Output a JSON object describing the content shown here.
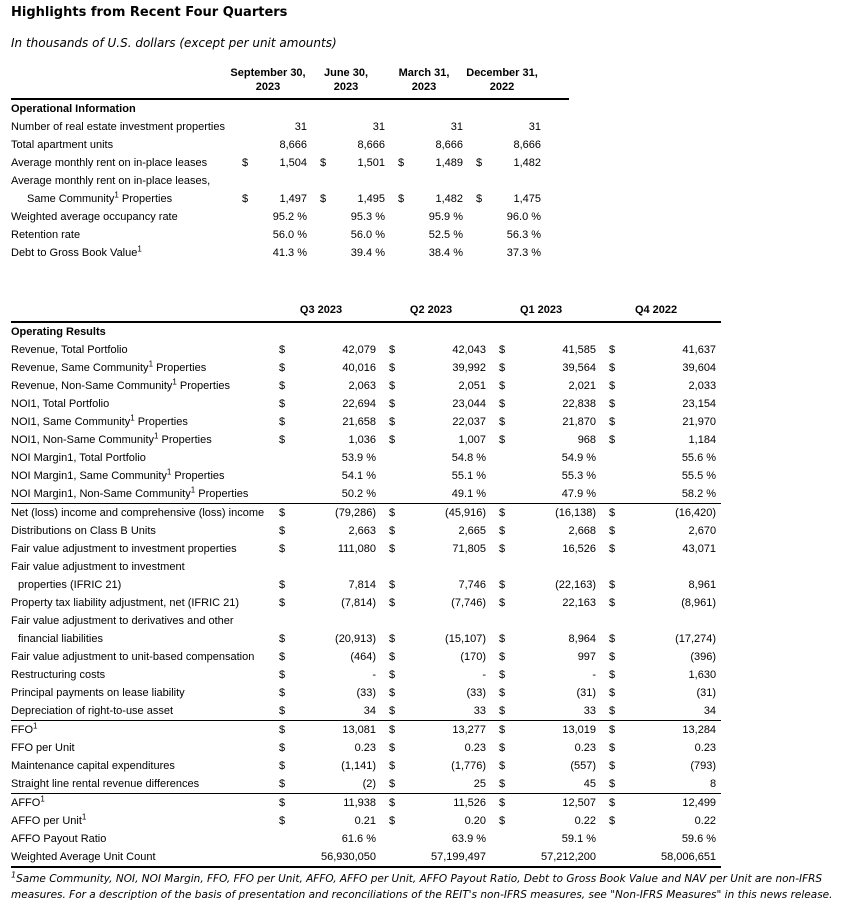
{
  "title": "Highlights from Recent Four Quarters",
  "subtitle": "In thousands of U.S. dollars (except per unit amounts)",
  "currency_symbol": "$",
  "table1": {
    "section_label": "Operational Information",
    "col_headers": [
      {
        "l1": "September 30,",
        "l2": "2023"
      },
      {
        "l1": "June 30,",
        "l2": "2023"
      },
      {
        "l1": "March 31,",
        "l2": "2023"
      },
      {
        "l1": "December 31,",
        "l2": "2022"
      }
    ],
    "rows": [
      {
        "label": "Number of real estate investment properties",
        "dollar": false,
        "values": [
          "31",
          "31",
          "31",
          "31"
        ]
      },
      {
        "label": "Total apartment units",
        "dollar": false,
        "values": [
          "8,666",
          "8,666",
          "8,666",
          "8,666"
        ]
      },
      {
        "label": "Average monthly rent on in-place leases",
        "dollar": true,
        "values": [
          "1,504",
          "1,501",
          "1,489",
          "1,482"
        ]
      },
      {
        "label": "Average monthly rent on in-place leases,",
        "dollar": false,
        "values": []
      },
      {
        "label": "Same Community",
        "sup": "1",
        "post": " Properties",
        "indent": 1,
        "dollar": true,
        "values": [
          "1,497",
          "1,495",
          "1,482",
          "1,475"
        ]
      },
      {
        "label": "Weighted average occupancy rate",
        "dollar": false,
        "values": [
          "95.2 %",
          "95.3 %",
          "95.9 %",
          "96.0 %"
        ]
      },
      {
        "label": "Retention rate",
        "dollar": false,
        "values": [
          "56.0 %",
          "56.0 %",
          "52.5 %",
          "56.3 %"
        ]
      },
      {
        "label": "Debt to Gross Book Value",
        "sup": "1",
        "dollar": false,
        "values": [
          "41.3 %",
          "39.4 %",
          "38.4 %",
          "37.3 %"
        ]
      }
    ]
  },
  "table2": {
    "section_label": "Operating Results",
    "col_headers": [
      "Q3 2023",
      "Q2 2023",
      "Q1 2023",
      "Q4 2022"
    ],
    "rows": [
      {
        "label": "Revenue, Total Portfolio",
        "dollar": true,
        "values": [
          "42,079",
          "42,043",
          "41,585",
          "41,637"
        ]
      },
      {
        "label": "Revenue, Same Community",
        "sup": "1",
        "post": " Properties",
        "dollar": true,
        "values": [
          "40,016",
          "39,992",
          "39,564",
          "39,604"
        ]
      },
      {
        "label": "Revenue, Non-Same Community",
        "sup": "1",
        "post": " Properties",
        "dollar": true,
        "values": [
          "2,063",
          "2,051",
          "2,021",
          "2,033"
        ]
      },
      {
        "label": "NOI1, Total Portfolio",
        "dollar": true,
        "values": [
          "22,694",
          "23,044",
          "22,838",
          "23,154"
        ]
      },
      {
        "label": "NOI1, Same Community",
        "sup": "1",
        "post": " Properties",
        "dollar": true,
        "values": [
          "21,658",
          "22,037",
          "21,870",
          "21,970"
        ]
      },
      {
        "label": "NOI1, Non-Same Community",
        "sup": "1",
        "post": " Properties",
        "dollar": true,
        "values": [
          "1,036",
          "1,007",
          "968",
          "1,184"
        ]
      },
      {
        "label": "NOI Margin1, Total Portfolio",
        "dollar": false,
        "values": [
          "53.9 %",
          "54.8 %",
          "54.9 %",
          "55.6 %"
        ]
      },
      {
        "label": "NOI Margin1, Same Community",
        "sup": "1",
        "post": " Properties",
        "dollar": false,
        "values": [
          "54.1 %",
          "55.1 %",
          "55.3 %",
          "55.5 %"
        ]
      },
      {
        "label": "NOI Margin1, Non-Same Community",
        "sup": "1",
        "post": " Properties",
        "dollar": false,
        "values": [
          "50.2 %",
          "49.1 %",
          "47.9 %",
          "58.2 %"
        ]
      },
      {
        "label": "Net (loss) income and comprehensive (loss) income",
        "dollar": true,
        "rule": "top",
        "values": [
          "(79,286)",
          "(45,916)",
          "(16,138)",
          "(16,420)"
        ]
      },
      {
        "label": "Distributions on Class B Units",
        "dollar": true,
        "values": [
          "2,663",
          "2,665",
          "2,668",
          "2,670"
        ]
      },
      {
        "label": "Fair value adjustment to investment properties",
        "dollar": true,
        "values": [
          "111,080",
          "71,805",
          "16,526",
          "43,071"
        ]
      },
      {
        "label": "Fair value adjustment to investment",
        "dollar": false,
        "values": []
      },
      {
        "label": "properties (IFRIC 21)",
        "indent": 1,
        "dollar": true,
        "values": [
          "7,814",
          "7,746",
          "(22,163)",
          "8,961"
        ]
      },
      {
        "label": "Property tax liability adjustment, net (IFRIC 21)",
        "dollar": true,
        "values": [
          "(7,814)",
          "(7,746)",
          "22,163",
          "(8,961)"
        ]
      },
      {
        "label": "Fair value adjustment to derivatives and other",
        "dollar": false,
        "values": []
      },
      {
        "label": "financial liabilities",
        "indent": 1,
        "dollar": true,
        "values": [
          "(20,913)",
          "(15,107)",
          "8,964",
          "(17,274)"
        ]
      },
      {
        "label": "Fair value adjustment to unit-based compensation",
        "dollar": true,
        "values": [
          "(464)",
          "(170)",
          "997",
          "(396)"
        ]
      },
      {
        "label": "Restructuring costs",
        "dollar": true,
        "values": [
          "-",
          "-",
          "-",
          "1,630"
        ]
      },
      {
        "label": "Principal payments on lease liability",
        "dollar": true,
        "values": [
          "(33)",
          "(33)",
          "(31)",
          "(31)"
        ]
      },
      {
        "label": "Depreciation of right-to-use asset",
        "dollar": true,
        "values": [
          "34",
          "33",
          "33",
          "34"
        ]
      },
      {
        "label": "FFO",
        "sup": "1",
        "dollar": true,
        "rule": "top",
        "values": [
          "13,081",
          "13,277",
          "13,019",
          "13,284"
        ]
      },
      {
        "label": "FFO per Unit",
        "dollar": true,
        "values": [
          "0.23",
          "0.23",
          "0.23",
          "0.23"
        ]
      },
      {
        "label": "Maintenance capital expenditures",
        "dollar": true,
        "values": [
          "(1,141)",
          "(1,776)",
          "(557)",
          "(793)"
        ]
      },
      {
        "label": "Straight line rental revenue differences",
        "dollar": true,
        "values": [
          "(2)",
          "25",
          "45",
          "8"
        ]
      },
      {
        "label": "AFFO",
        "sup": "1",
        "dollar": true,
        "rule": "top",
        "values": [
          "11,938",
          "11,526",
          "12,507",
          "12,499"
        ]
      },
      {
        "label": "AFFO per Unit",
        "sup": "1",
        "dollar": true,
        "values": [
          "0.21",
          "0.20",
          "0.22",
          "0.22"
        ]
      },
      {
        "label": "AFFO Payout Ratio",
        "dollar": false,
        "values": [
          "61.6 %",
          "63.9 %",
          "59.1 %",
          "59.6 %"
        ]
      },
      {
        "label": "Weighted Average Unit Count",
        "dollar": false,
        "values": [
          "56,930,050",
          "57,199,497",
          "57,212,200",
          "58,006,651"
        ]
      }
    ]
  },
  "footnote": {
    "marker": "1",
    "text": "Same Community, NOI, NOI Margin, FFO, FFO per Unit, AFFO, AFFO per Unit, AFFO Payout Ratio, Debt to Gross Book Value and NAV per Unit are non-IFRS measures. For a description of the basis of presentation and reconciliations of the REIT's non-IFRS measures, see \"Non-IFRS Measures\" in this news release."
  }
}
